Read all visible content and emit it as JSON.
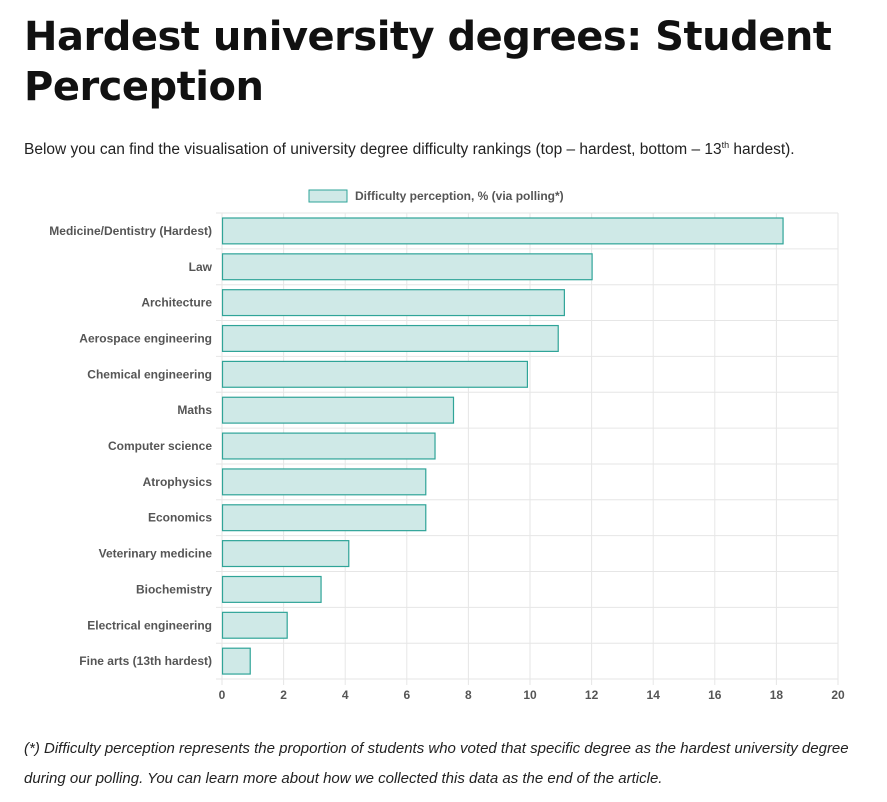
{
  "page": {
    "title": "Hardest university degrees: Student Perception",
    "intro_before": "Below you can find the visualisation of university degree difficulty rankings (top – hardest, bottom – 13",
    "intro_sup": "th",
    "intro_after": " hardest).",
    "footnote": "(*) Difficulty perception represents the proportion of students who voted that specific degree as the hardest university degree during our polling. You can learn more about how we collected this data as the end of the article."
  },
  "colors": {
    "bar_fill": "#cfe9e7",
    "bar_stroke": "#2fa498",
    "grid": "#e6e6e6",
    "tick_text": "#555555"
  },
  "chart_data": {
    "type": "bar",
    "orientation": "horizontal",
    "categories": [
      "Medicine/Dentistry (Hardest)",
      "Law",
      "Architecture",
      "Aerospace engineering",
      "Chemical engineering",
      "Maths",
      "Computer science",
      "Atrophysics",
      "Economics",
      "Veterinary medicine",
      "Biochemistry",
      "Electrical engineering",
      "Fine arts (13th hardest)"
    ],
    "series": [
      {
        "name": "Difficulty perception, % (via polling*)",
        "values": [
          18.2,
          12.0,
          11.1,
          10.9,
          9.9,
          7.5,
          6.9,
          6.6,
          6.6,
          4.1,
          3.2,
          2.1,
          0.9
        ]
      }
    ],
    "xlim": [
      0,
      20
    ],
    "xticks": [
      "0",
      "2",
      "4",
      "6",
      "8",
      "10",
      "12",
      "14",
      "16",
      "18",
      "20"
    ],
    "grid": true,
    "legend_position": "top"
  }
}
